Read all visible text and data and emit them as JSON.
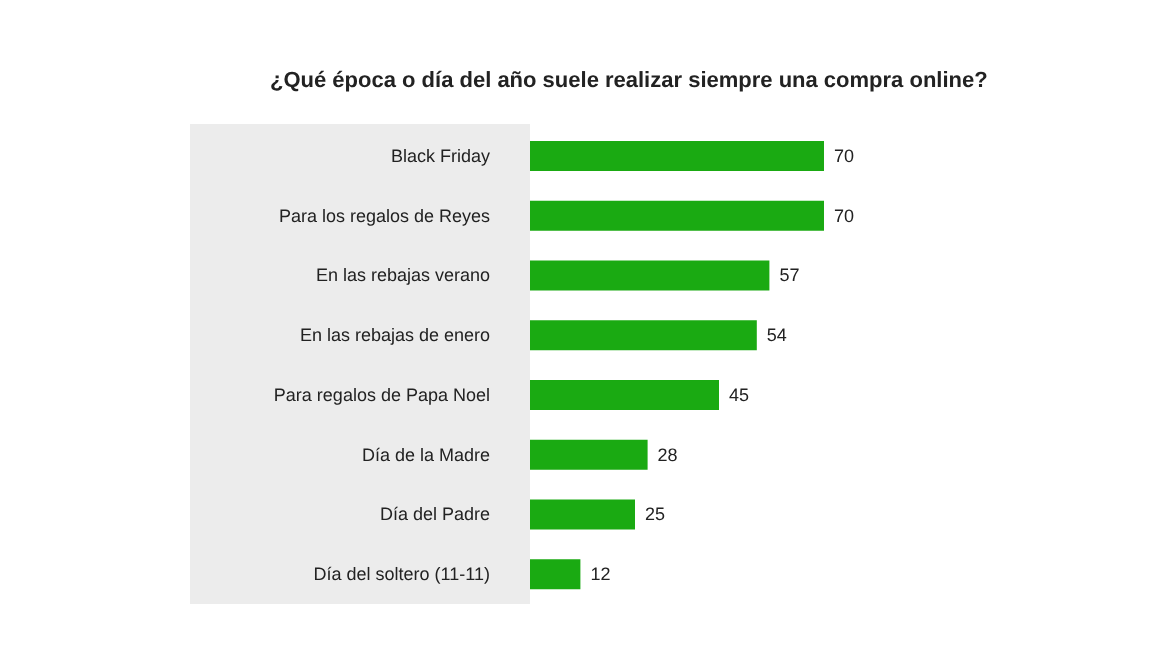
{
  "chart_data": {
    "type": "bar",
    "orientation": "horizontal",
    "title": "¿Qué época o día del año suele realizar siempre una compra online?",
    "categories": [
      "Black Friday",
      "Para los regalos de Reyes",
      "En las rebajas verano",
      "En las rebajas de enero",
      "Para regalos de Papa Noel",
      "Día de la Madre",
      "Día del Padre",
      "Día del soltero (11-11)"
    ],
    "values": [
      70,
      70,
      57,
      54,
      45,
      28,
      25,
      12
    ],
    "color": "#1aaa12",
    "data_labels": true
  }
}
